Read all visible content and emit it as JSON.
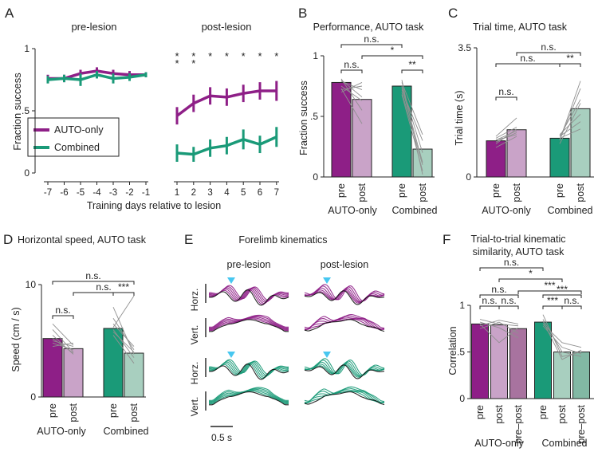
{
  "colors": {
    "auto_pre": "#8e1f87",
    "auto_post": "#c9a3c8",
    "auto_prepost": "#a8739f",
    "comb_pre": "#1a9a78",
    "comb_post": "#a8cfbf",
    "comb_prepost": "#82b8a4",
    "line_auto": "#8e1f87",
    "line_comb": "#1a9a78",
    "cyan": "#47c7f0",
    "gray": "#909090"
  },
  "chart_data": [
    {
      "id": "A",
      "type": "line",
      "panel_letter": "A",
      "title_pre": "pre-lesion",
      "title_post": "post-lesion",
      "xlabel": "Training days relative to lesion",
      "ylabel": "Fraction success",
      "ylim": [
        0,
        1
      ],
      "yticks": [
        "0",
        ".5",
        "1"
      ],
      "x_pre": [
        -7,
        -6,
        -5,
        -4,
        -3,
        -2,
        -1
      ],
      "x_post": [
        1,
        2,
        3,
        4,
        5,
        6,
        7
      ],
      "xtick_labels": [
        "-7",
        "-6",
        "-5",
        "-4",
        "-3",
        "-2",
        "-1",
        "1",
        "2",
        "3",
        "4",
        "5",
        "6",
        "7"
      ],
      "legend": [
        "AUTO-only",
        "Combined"
      ],
      "series": [
        {
          "name": "AUTO-only",
          "pre": [
            0.76,
            0.76,
            0.8,
            0.82,
            0.8,
            0.79,
            0.79
          ],
          "post": [
            0.46,
            0.56,
            0.62,
            0.61,
            0.64,
            0.66,
            0.66
          ],
          "err_pre": [
            0.03,
            0.03,
            0.03,
            0.03,
            0.03,
            0.03,
            0.02
          ],
          "err_post": [
            0.07,
            0.07,
            0.07,
            0.07,
            0.07,
            0.07,
            0.08
          ]
        },
        {
          "name": "Combined",
          "pre": [
            0.75,
            0.76,
            0.75,
            0.79,
            0.76,
            0.77,
            0.79
          ],
          "post": [
            0.16,
            0.15,
            0.2,
            0.22,
            0.27,
            0.23,
            0.29
          ],
          "err_pre": [
            0.03,
            0.03,
            0.05,
            0.03,
            0.04,
            0.03,
            0.02
          ],
          "err_post": [
            0.07,
            0.06,
            0.07,
            0.07,
            0.08,
            0.07,
            0.08
          ]
        }
      ],
      "sig_green_days": [
        1,
        2,
        3,
        4,
        5,
        6,
        7
      ],
      "sig_purple_days": [
        1,
        2
      ],
      "star": "*"
    },
    {
      "id": "B",
      "type": "bar",
      "panel_letter": "B",
      "title": "Performance, AUTO task",
      "ylabel": "Fraction success",
      "ylim": [
        0,
        1
      ],
      "yticks": [
        "0",
        ".5",
        "1"
      ],
      "categories": [
        "pre",
        "post",
        "pre",
        "post"
      ],
      "groups": [
        "AUTO-only",
        "Combined"
      ],
      "values": [
        0.78,
        0.64,
        0.75,
        0.23
      ],
      "individual": [
        [
          0.79,
          0.72
        ],
        [
          0.81,
          0.55
        ],
        [
          0.73,
          0.44
        ],
        [
          0.75,
          0.63
        ],
        [
          0.7,
          0.78
        ],
        [
          0.72,
          0.75
        ],
        [
          0.8,
          0.66
        ]
      ],
      "individual_comb": [
        [
          0.75,
          0.2
        ],
        [
          0.8,
          0.02
        ],
        [
          0.72,
          0.3
        ],
        [
          0.7,
          0.1
        ],
        [
          0.78,
          0.35
        ],
        [
          0.68,
          0.05
        ],
        [
          0.74,
          0.12
        ]
      ],
      "sig": [
        {
          "a": 0,
          "b": 1,
          "label": "n.s."
        },
        {
          "a": 0,
          "b": 2,
          "label": "n.s."
        },
        {
          "a": 1,
          "b": 3,
          "label": "*"
        },
        {
          "a": 2,
          "b": 3,
          "label": "**"
        }
      ]
    },
    {
      "id": "C",
      "type": "bar",
      "panel_letter": "C",
      "title": "Trial time, AUTO task",
      "ylabel": "Trial time (s)",
      "ylim": [
        0,
        3.5
      ],
      "yticks": [
        "0",
        "3.5"
      ],
      "categories": [
        "pre",
        "post",
        "pre",
        "post"
      ],
      "groups": [
        "AUTO-only",
        "Combined"
      ],
      "values": [
        0.98,
        1.28,
        1.05,
        1.85
      ],
      "individual": [
        [
          0.9,
          1.3
        ],
        [
          1.0,
          1.15
        ],
        [
          1.1,
          1.6
        ],
        [
          0.95,
          1.2
        ],
        [
          1.05,
          1.35
        ],
        [
          0.8,
          1.1
        ],
        [
          1.0,
          1.25
        ]
      ],
      "individual_comb": [
        [
          1.0,
          2.4
        ],
        [
          1.1,
          1.5
        ],
        [
          0.9,
          2.0
        ],
        [
          1.15,
          1.7
        ],
        [
          1.0,
          2.6
        ],
        [
          1.05,
          1.3
        ],
        [
          1.1,
          2.1
        ]
      ],
      "sig": [
        {
          "a": 0,
          "b": 1,
          "label": "n.s."
        },
        {
          "a": 0,
          "b": 2,
          "label": "n.s."
        },
        {
          "a": 1,
          "b": 3,
          "label": "n.s."
        },
        {
          "a": 2,
          "b": 3,
          "label": "**"
        }
      ]
    },
    {
      "id": "D",
      "type": "bar",
      "panel_letter": "D",
      "title": "Horizontal speed, AUTO task",
      "ylabel": "Speed (cm / s)",
      "ylim": [
        0,
        10
      ],
      "yticks": [
        "0",
        "10"
      ],
      "categories": [
        "pre",
        "post",
        "pre",
        "post"
      ],
      "groups": [
        "AUTO-only",
        "Combined"
      ],
      "values": [
        5.2,
        4.3,
        6.1,
        3.9
      ],
      "individual": [
        [
          5.0,
          4.5
        ],
        [
          6.0,
          4.0
        ],
        [
          4.5,
          4.8
        ],
        [
          5.5,
          3.8
        ],
        [
          4.8,
          4.2
        ],
        [
          6.5,
          4.6
        ],
        [
          5.2,
          3.9
        ]
      ],
      "individual_comb": [
        [
          6.0,
          3.5
        ],
        [
          7.0,
          4.2
        ],
        [
          5.5,
          3.0
        ],
        [
          6.5,
          4.5
        ],
        [
          8.0,
          3.8
        ],
        [
          5.8,
          4.0
        ],
        [
          6.2,
          9.0
        ]
      ],
      "sig": [
        {
          "a": 0,
          "b": 1,
          "label": "n.s."
        },
        {
          "a": 1,
          "b": 3,
          "label": "n.s."
        },
        {
          "a": 0,
          "b": 3,
          "label": "n.s."
        },
        {
          "a": 2,
          "b": 3,
          "label": "***"
        }
      ]
    },
    {
      "id": "E",
      "type": "line",
      "panel_letter": "E",
      "title": "Forelimb kinematics",
      "col_labels": [
        "pre-lesion",
        "post-lesion"
      ],
      "row_labels": [
        "Horz.",
        "Vert.",
        "Horz.",
        "Vert."
      ],
      "scale_label": "0.5 s"
    },
    {
      "id": "F",
      "type": "bar",
      "panel_letter": "F",
      "title_line1": "Trial-to-trial kinematic",
      "title_line2": "similarity, AUTO task",
      "ylabel": "Correlation",
      "ylim": [
        0,
        1
      ],
      "yticks": [
        "0",
        ".5",
        "1"
      ],
      "categories": [
        "pre",
        "post",
        "pre–post",
        "pre",
        "post",
        "pre–post"
      ],
      "groups": [
        "AUTO-only",
        "Combined"
      ],
      "values": [
        0.8,
        0.79,
        0.75,
        0.82,
        0.5,
        0.5
      ],
      "individual": [
        [
          0.85,
          0.8,
          0.78
        ],
        [
          0.75,
          0.82,
          0.7
        ],
        [
          0.82,
          0.76,
          0.65
        ],
        [
          0.78,
          0.84,
          0.8
        ],
        [
          0.8,
          0.6,
          0.76
        ]
      ],
      "individual_comb": [
        [
          0.85,
          0.5,
          0.45
        ],
        [
          0.8,
          0.6,
          0.55
        ],
        [
          0.9,
          0.45,
          0.5
        ],
        [
          0.78,
          0.55,
          0.48
        ],
        [
          0.83,
          0.42,
          0.52
        ]
      ],
      "sig": [
        {
          "level": 0,
          "a": 0,
          "b": 1,
          "label": "n.s."
        },
        {
          "level": 0,
          "a": 1,
          "b": 2,
          "label": "n.s."
        },
        {
          "level": 1,
          "a": 0,
          "b": 2,
          "label": "n.s."
        },
        {
          "level": 0,
          "a": 3,
          "b": 4,
          "label": "***"
        },
        {
          "level": 0,
          "a": 4,
          "b": 5,
          "label": "n.s."
        },
        {
          "level": 1,
          "a": 3,
          "b": 5,
          "label": "***"
        },
        {
          "level": 2,
          "a": 1,
          "b": 4,
          "label": "*"
        },
        {
          "level": 3,
          "a": 2,
          "b": 5,
          "label": "***"
        },
        {
          "level": 4,
          "a": 0,
          "b": 3,
          "label": "n.s."
        }
      ]
    }
  ]
}
